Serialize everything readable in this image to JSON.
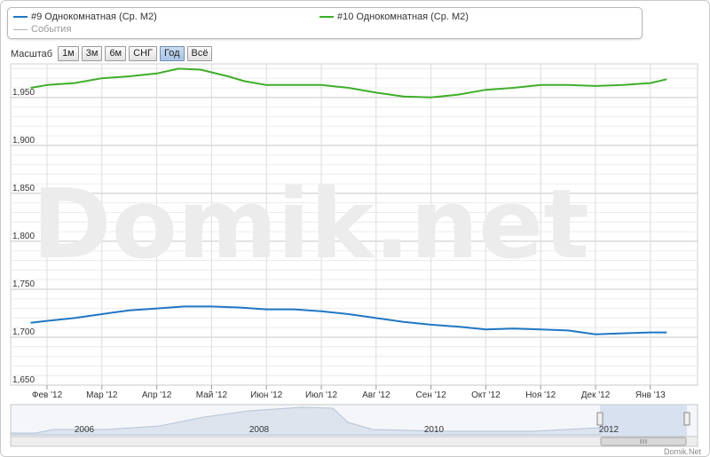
{
  "legend": {
    "series_a": "#9 Однокомнатная (Ср. М2)",
    "series_b": "#10 Однокомнатная (Ср. М2)",
    "events": "События"
  },
  "toolbar": {
    "label": "Масштаб",
    "buttons": [
      "1м",
      "3м",
      "6м",
      "СНГ",
      "Год",
      "Всё"
    ],
    "active": "Год"
  },
  "watermark": "Domik.net",
  "credit": "Domik.Net",
  "colors": {
    "series_a": "#1f77c4",
    "series_b": "#3fae2a",
    "events": "#b0b0b0"
  },
  "chart_data": {
    "type": "line",
    "x_tick_labels": [
      "Фев '12",
      "Мар '12",
      "Апр '12",
      "Май '12",
      "Июн '12",
      "Июл '12",
      "Авг '12",
      "Сен '12",
      "Окт '12",
      "Ноя '12",
      "Дек '12",
      "Янв '13"
    ],
    "y_tick_labels": [
      "1,650",
      "1,700",
      "1,750",
      "1,800",
      "1,850",
      "1,900",
      "1,950"
    ],
    "y_ticks": [
      1650,
      1700,
      1750,
      1800,
      1850,
      1900,
      1950
    ],
    "ylim": [
      1650,
      1985
    ],
    "xlim": [
      0,
      11.3
    ],
    "grid": true,
    "series": [
      {
        "name": "#9 Однокомнатная (Ср. М2)",
        "x": [
          -0.3,
          0,
          0.5,
          1,
          1.5,
          2,
          2.5,
          3,
          3.5,
          4,
          4.5,
          5,
          5.5,
          6,
          6.5,
          7,
          7.5,
          8,
          8.5,
          9,
          9.5,
          10,
          10.5,
          11,
          11.3
        ],
        "y": [
          1715,
          1717,
          1720,
          1724,
          1728,
          1730,
          1732,
          1732,
          1731,
          1729,
          1729,
          1727,
          1724,
          1720,
          1716,
          1713,
          1711,
          1708,
          1709,
          1708,
          1707,
          1703,
          1704,
          1705,
          1705
        ]
      },
      {
        "name": "#10 Однокомнатная (Ср. М2)",
        "x": [
          -0.3,
          0,
          0.5,
          1,
          1.5,
          2,
          2.4,
          2.8,
          3.3,
          3.6,
          4,
          4.5,
          5,
          5.5,
          6,
          6.5,
          7,
          7.5,
          8,
          8.5,
          9,
          9.5,
          10,
          10.5,
          11,
          11.3
        ],
        "y": [
          1960,
          1963,
          1965,
          1970,
          1972,
          1975,
          1980,
          1979,
          1972,
          1967,
          1963,
          1963,
          1963,
          1960,
          1955,
          1951,
          1950,
          1953,
          1958,
          1960,
          1963,
          1963,
          1962,
          1963,
          1965,
          1969
        ]
      }
    ],
    "navigator": {
      "x_labels": [
        "2006",
        "2008",
        "2010",
        "2012"
      ]
    }
  }
}
